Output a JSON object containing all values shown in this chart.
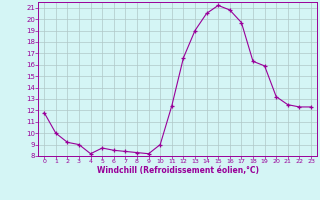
{
  "x": [
    0,
    1,
    2,
    3,
    4,
    5,
    6,
    7,
    8,
    9,
    10,
    11,
    12,
    13,
    14,
    15,
    16,
    17,
    18,
    19,
    20,
    21,
    22,
    23
  ],
  "y": [
    11.8,
    10.0,
    9.2,
    9.0,
    8.2,
    8.7,
    8.5,
    8.4,
    8.3,
    8.2,
    9.0,
    12.4,
    16.6,
    19.0,
    20.5,
    21.2,
    20.8,
    19.7,
    16.3,
    15.9,
    13.2,
    12.5,
    12.3,
    12.3
  ],
  "line_color": "#990099",
  "marker": "+",
  "marker_size": 3,
  "bg_color": "#d4f5f5",
  "grid_color": "#b0c8c8",
  "xlabel": "Windchill (Refroidissement éolien,°C)",
  "xlabel_color": "#990099",
  "tick_color": "#990099",
  "ylim": [
    8,
    21.5
  ],
  "xlim": [
    -0.5,
    23.5
  ],
  "yticks": [
    8,
    9,
    10,
    11,
    12,
    13,
    14,
    15,
    16,
    17,
    18,
    19,
    20,
    21
  ],
  "xticks": [
    0,
    1,
    2,
    3,
    4,
    5,
    6,
    7,
    8,
    9,
    10,
    11,
    12,
    13,
    14,
    15,
    16,
    17,
    18,
    19,
    20,
    21,
    22,
    23
  ]
}
